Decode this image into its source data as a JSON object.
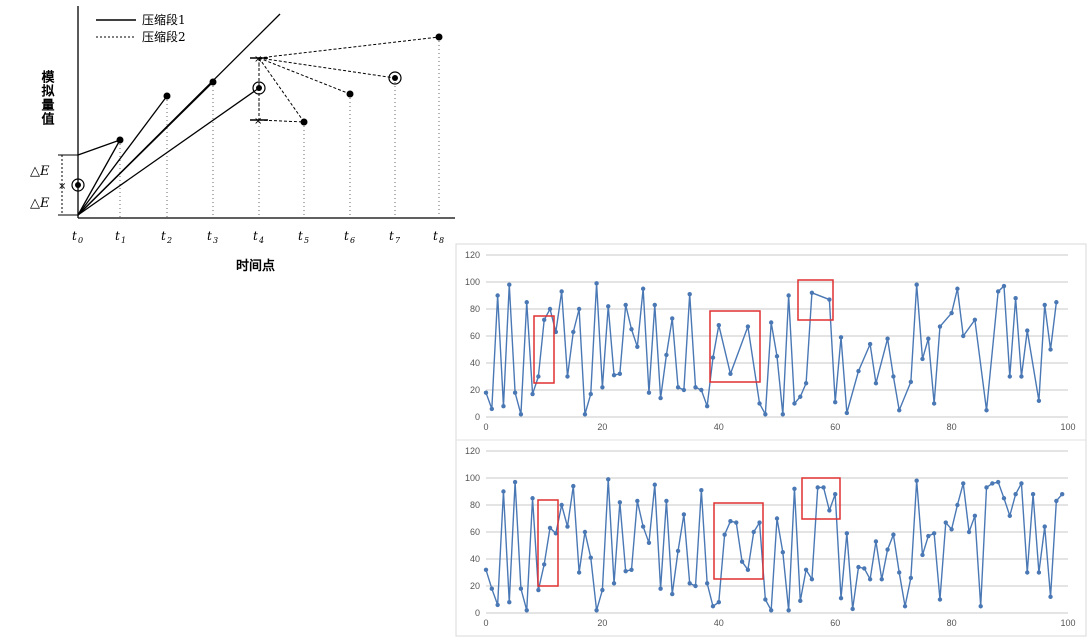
{
  "diagram": {
    "ylabel": "模拟量值",
    "xlabel": "时间点",
    "legend": [
      {
        "label": "压缩段1",
        "style": "solid"
      },
      {
        "label": "压缩段2",
        "style": "dashed"
      }
    ],
    "delta_label": "△E",
    "time_labels": [
      "0",
      "1",
      "2",
      "3",
      "4",
      "5",
      "6",
      "7",
      "8"
    ]
  },
  "chart_data": [
    {
      "type": "line",
      "xlim": [
        0,
        100
      ],
      "ylim": [
        0,
        120
      ],
      "xticks": [
        0,
        20,
        40,
        60,
        80,
        100
      ],
      "yticks": [
        0,
        20,
        40,
        60,
        80,
        100,
        120
      ],
      "grid": true,
      "color": "#4a78b5",
      "x": [
        0,
        1,
        2,
        3,
        4,
        5,
        6,
        7,
        8,
        9,
        10,
        11,
        12,
        13,
        14,
        15,
        16,
        17,
        18,
        19,
        20,
        21,
        22,
        23,
        24,
        25,
        26,
        27,
        28,
        29,
        30,
        31,
        32,
        33,
        34,
        35,
        36,
        37,
        38,
        39,
        40,
        42,
        45,
        47,
        48,
        49,
        50,
        51,
        52,
        53,
        54,
        55,
        56,
        59,
        60,
        61,
        62,
        64,
        66,
        67,
        69,
        70,
        71,
        73,
        74,
        75,
        76,
        77,
        78,
        80,
        81,
        82,
        84,
        86,
        88,
        89,
        90,
        91,
        92,
        93,
        95,
        96,
        97,
        98
      ],
      "y": [
        18,
        6,
        90,
        8,
        98,
        18,
        2,
        85,
        17,
        30,
        72,
        80,
        63,
        93,
        30,
        63,
        80,
        2,
        17,
        99,
        22,
        82,
        31,
        32,
        83,
        65,
        52,
        95,
        18,
        83,
        14,
        46,
        73,
        22,
        20,
        91,
        22,
        20,
        8,
        44,
        68,
        32,
        67,
        10,
        2,
        70,
        45,
        2,
        90,
        10,
        15,
        25,
        92,
        87,
        11,
        59,
        3,
        34,
        54,
        25,
        58,
        30,
        5,
        26,
        98,
        43,
        58,
        10,
        67,
        77,
        95,
        60,
        72,
        5,
        93,
        97,
        30,
        88,
        30,
        64,
        12,
        83,
        50,
        85
      ]
    },
    {
      "type": "line",
      "xlim": [
        0,
        100
      ],
      "ylim": [
        0,
        120
      ],
      "xticks": [
        0,
        20,
        40,
        60,
        80,
        100
      ],
      "yticks": [
        0,
        20,
        40,
        60,
        80,
        100,
        120
      ],
      "grid": true,
      "color": "#4a78b5",
      "x": [
        0,
        1,
        2,
        3,
        4,
        5,
        6,
        7,
        8,
        9,
        10,
        11,
        12,
        13,
        14,
        15,
        16,
        17,
        18,
        19,
        20,
        21,
        22,
        23,
        24,
        25,
        26,
        27,
        28,
        29,
        30,
        31,
        32,
        33,
        34,
        35,
        36,
        37,
        38,
        39,
        40,
        41,
        42,
        43,
        44,
        45,
        46,
        47,
        48,
        49,
        50,
        51,
        52,
        53,
        54,
        55,
        56,
        57,
        58,
        59,
        60,
        61,
        62,
        63,
        64,
        65,
        66,
        67,
        68,
        69,
        70,
        71,
        72,
        73,
        74,
        75,
        76,
        77,
        78,
        79,
        80,
        81,
        82,
        83,
        84,
        85,
        86,
        87,
        88,
        89,
        90,
        91,
        92,
        93,
        94,
        95,
        96,
        97,
        98,
        99
      ],
      "y": [
        32,
        18,
        6,
        90,
        8,
        97,
        18,
        2,
        85,
        17,
        36,
        63,
        59,
        80,
        64,
        94,
        30,
        60,
        41,
        2,
        17,
        99,
        22,
        82,
        31,
        32,
        83,
        64,
        52,
        95,
        18,
        83,
        14,
        46,
        73,
        22,
        20,
        91,
        22,
        5,
        8,
        58,
        68,
        67,
        38,
        32,
        60,
        67,
        10,
        2,
        70,
        45,
        2,
        92,
        9,
        32,
        25,
        93,
        93,
        76,
        88,
        11,
        59,
        3,
        34,
        33,
        25,
        53,
        25,
        47,
        58,
        30,
        5,
        26,
        98,
        43,
        57,
        59,
        10,
        67,
        62,
        80,
        96,
        60,
        72,
        5,
        93,
        96,
        97,
        85,
        72,
        88,
        96,
        30,
        88,
        30,
        64,
        12,
        83,
        88
      ]
    }
  ]
}
